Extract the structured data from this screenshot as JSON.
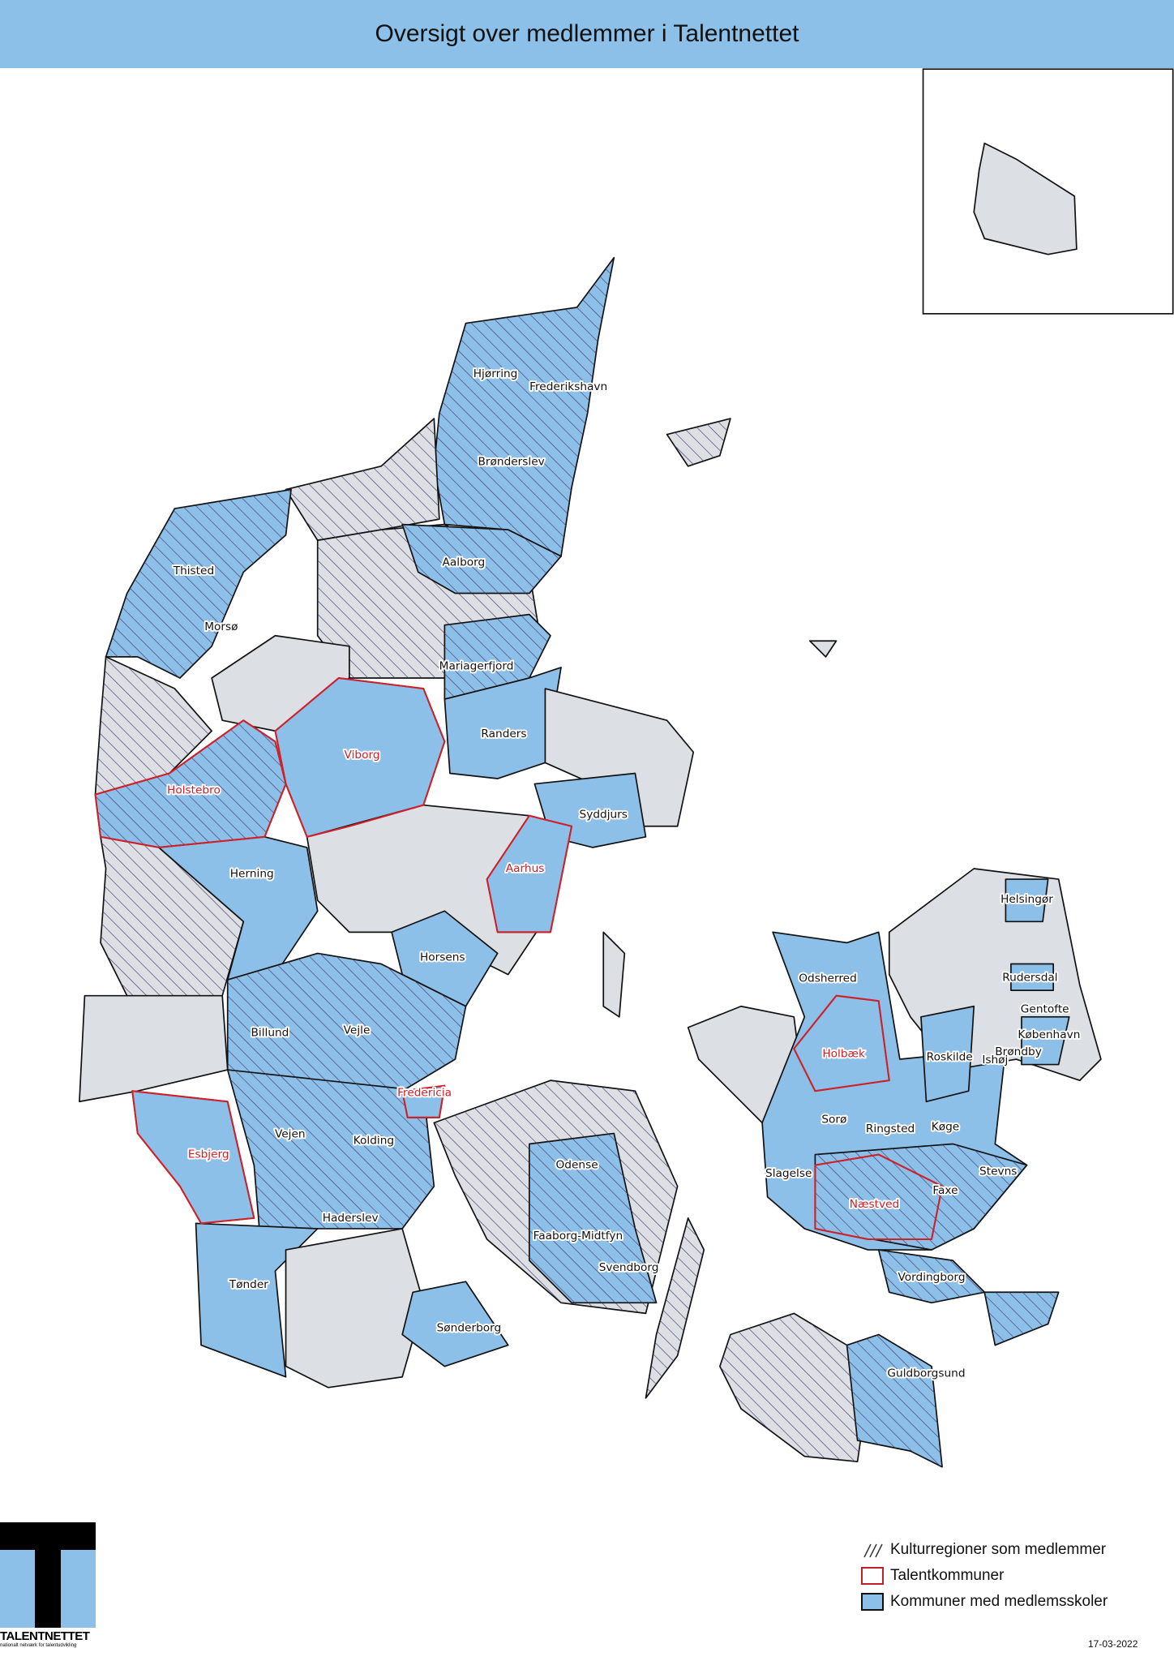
{
  "title": "Oversigt over medlemmer i Talentnettet",
  "colors": {
    "member_blue": "#8cc0e8",
    "land_grey": "#dcdfe3",
    "talent_red": "#d0202a",
    "hatch": "#4a3a6a",
    "title_bar": "#8cc0e8"
  },
  "legend": [
    {
      "label": "Kulturregioner som medlemmer",
      "symbol": "hatch"
    },
    {
      "label": "Talentkommuner",
      "symbol": "red-outline"
    },
    {
      "label": "Kommuner med medlemsskoler",
      "symbol": "blue-fill"
    }
  ],
  "municipalities": [
    {
      "name": "Hjørring",
      "talent": false
    },
    {
      "name": "Frederikshavn",
      "talent": false
    },
    {
      "name": "Brønderslev",
      "talent": false
    },
    {
      "name": "Aalborg",
      "talent": false
    },
    {
      "name": "Thisted",
      "talent": false
    },
    {
      "name": "Morsø",
      "talent": false
    },
    {
      "name": "Mariagerfjord",
      "talent": false
    },
    {
      "name": "Randers",
      "talent": false
    },
    {
      "name": "Viborg",
      "talent": true
    },
    {
      "name": "Holstebro",
      "talent": true
    },
    {
      "name": "Syddjurs",
      "talent": false
    },
    {
      "name": "Aarhus",
      "talent": true
    },
    {
      "name": "Herning",
      "talent": false
    },
    {
      "name": "Horsens",
      "talent": false
    },
    {
      "name": "Odsherred",
      "talent": false
    },
    {
      "name": "Helsingør",
      "talent": false
    },
    {
      "name": "Rudersdal",
      "talent": false
    },
    {
      "name": "Gentofte",
      "talent": false
    },
    {
      "name": "København",
      "talent": false
    },
    {
      "name": "Brøndby",
      "talent": false
    },
    {
      "name": "Ishøj",
      "talent": false
    },
    {
      "name": "Roskilde",
      "talent": false
    },
    {
      "name": "Holbæk",
      "talent": true
    },
    {
      "name": "Billund",
      "talent": false
    },
    {
      "name": "Vejle",
      "talent": false
    },
    {
      "name": "Fredericia",
      "talent": true
    },
    {
      "name": "Sorø",
      "talent": false
    },
    {
      "name": "Ringsted",
      "talent": false
    },
    {
      "name": "Køge",
      "talent": false
    },
    {
      "name": "Vejen",
      "talent": false
    },
    {
      "name": "Kolding",
      "talent": false
    },
    {
      "name": "Esbjerg",
      "talent": true
    },
    {
      "name": "Odense",
      "talent": false
    },
    {
      "name": "Slagelse",
      "talent": false
    },
    {
      "name": "Næstved",
      "talent": true
    },
    {
      "name": "Faxe",
      "talent": false
    },
    {
      "name": "Stevns",
      "talent": false
    },
    {
      "name": "Haderslev",
      "talent": false
    },
    {
      "name": "Faaborg-Midtfyn",
      "talent": false
    },
    {
      "name": "Svendborg",
      "talent": false
    },
    {
      "name": "Vordingborg",
      "talent": false
    },
    {
      "name": "Tønder",
      "talent": false
    },
    {
      "name": "Sønderborg",
      "talent": false
    },
    {
      "name": "Guldborgsund",
      "talent": false
    }
  ],
  "logo": {
    "name": "TALENTNETTET",
    "tagline": "nationalt netværk for talentudvikling"
  },
  "date": "17-03-2022"
}
